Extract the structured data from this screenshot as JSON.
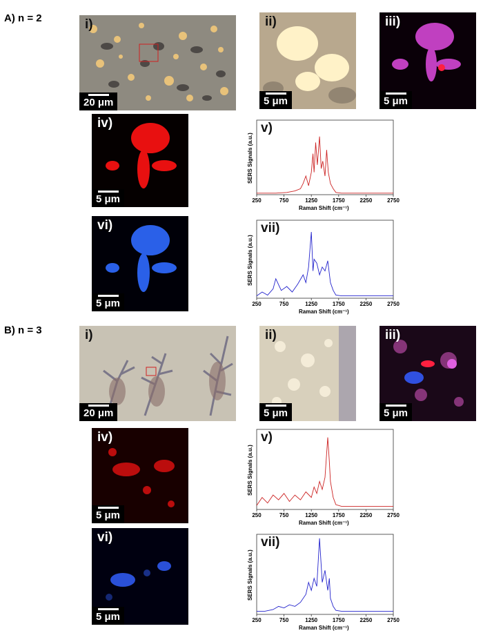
{
  "sections": [
    {
      "id": "A",
      "label": "A) n = 2"
    },
    {
      "id": "B",
      "label": "B) n = 3"
    }
  ],
  "panels": {
    "A": {
      "i": {
        "label": "i)",
        "scale": "20 μm"
      },
      "ii": {
        "label": "ii)",
        "scale": "5 μm"
      },
      "iii": {
        "label": "iii)",
        "scale": "5 μm"
      },
      "iv": {
        "label": "iv)",
        "scale": "5 μm"
      },
      "vi": {
        "label": "vi)",
        "scale": "5 μm"
      }
    },
    "B": {
      "i": {
        "label": "i)",
        "scale": "20 μm"
      },
      "ii": {
        "label": "ii)",
        "scale": "5 μm"
      },
      "iii": {
        "label": "iii)",
        "scale": "5 μm"
      },
      "iv": {
        "label": "iv)",
        "scale": "5 μm"
      },
      "vi": {
        "label": "vi)",
        "scale": "5 μm"
      }
    }
  },
  "chart_data": [
    {
      "id": "A-v",
      "type": "line",
      "label": "v)",
      "color": "#cc2222",
      "xlabel": "Raman Shift (cm⁻¹)",
      "ylabel": "SERS Signals (a.u.)",
      "xlim": [
        250,
        2750
      ],
      "xticks": [
        250,
        750,
        1250,
        1750,
        2250,
        2750
      ],
      "x": [
        250,
        400,
        600,
        800,
        950,
        1050,
        1100,
        1150,
        1200,
        1250,
        1280,
        1300,
        1330,
        1360,
        1400,
        1430,
        1460,
        1500,
        1530,
        1560,
        1600,
        1650,
        1700,
        1800,
        2000,
        2400,
        2750
      ],
      "y": [
        2,
        2,
        2,
        3,
        5,
        8,
        15,
        25,
        12,
        30,
        55,
        30,
        70,
        40,
        78,
        35,
        45,
        25,
        60,
        30,
        15,
        8,
        3,
        2,
        2,
        2,
        2
      ]
    },
    {
      "id": "A-vii",
      "type": "line",
      "label": "vii)",
      "color": "#2222cc",
      "xlabel": "Raman Shift (cm⁻¹)",
      "ylabel": "SERS Signals (a.u.)",
      "xlim": [
        250,
        2750
      ],
      "xticks": [
        250,
        750,
        1250,
        1750,
        2250,
        2750
      ],
      "x": [
        250,
        350,
        450,
        550,
        600,
        700,
        800,
        900,
        1000,
        1100,
        1150,
        1200,
        1250,
        1280,
        1300,
        1350,
        1400,
        1450,
        1500,
        1550,
        1600,
        1650,
        1700,
        1800,
        2000,
        2400,
        2750
      ],
      "y": [
        3,
        8,
        4,
        12,
        25,
        10,
        15,
        8,
        18,
        30,
        20,
        40,
        85,
        35,
        50,
        45,
        30,
        40,
        35,
        48,
        20,
        10,
        4,
        3,
        3,
        3,
        3
      ]
    },
    {
      "id": "B-v",
      "type": "line",
      "label": "v)",
      "color": "#cc2222",
      "xlabel": "Raman Shift (cm⁻¹)",
      "ylabel": "SERS Signals (a.u.)",
      "xlim": [
        250,
        2750
      ],
      "xticks": [
        250,
        750,
        1250,
        1750,
        2250,
        2750
      ],
      "x": [
        250,
        350,
        450,
        550,
        650,
        750,
        850,
        950,
        1050,
        1150,
        1250,
        1300,
        1350,
        1400,
        1450,
        1500,
        1550,
        1580,
        1600,
        1650,
        1700,
        1800,
        2000,
        2400,
        2750
      ],
      "y": [
        5,
        15,
        8,
        18,
        12,
        20,
        10,
        18,
        12,
        22,
        15,
        28,
        20,
        35,
        25,
        40,
        90,
        60,
        35,
        15,
        6,
        4,
        4,
        4,
        4
      ]
    },
    {
      "id": "B-vii",
      "type": "line",
      "label": "vii)",
      "color": "#2222cc",
      "xlabel": "Raman Shift (cm⁻¹)",
      "ylabel": "SERS Signals (a.u.)",
      "xlim": [
        250,
        2750
      ],
      "xticks": [
        250,
        750,
        1250,
        1750,
        2250,
        2750
      ],
      "x": [
        250,
        400,
        550,
        650,
        750,
        850,
        950,
        1050,
        1150,
        1200,
        1250,
        1300,
        1350,
        1400,
        1450,
        1500,
        1550,
        1580,
        1600,
        1650,
        1700,
        1800,
        2000,
        2400,
        2750
      ],
      "y": [
        4,
        4,
        6,
        10,
        8,
        12,
        10,
        15,
        25,
        40,
        30,
        45,
        35,
        95,
        40,
        55,
        30,
        45,
        20,
        10,
        5,
        4,
        4,
        4,
        4
      ]
    }
  ]
}
